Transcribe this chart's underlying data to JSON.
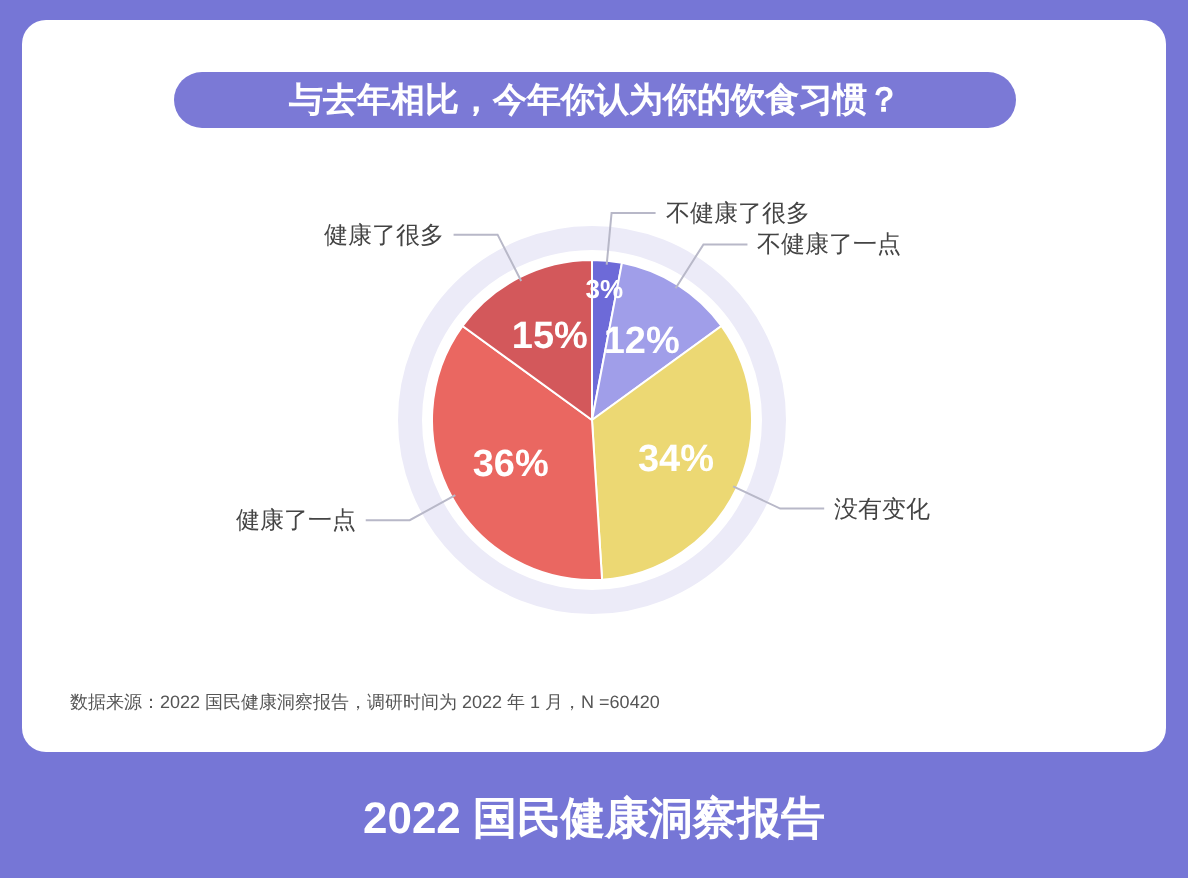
{
  "chart_data": {
    "type": "pie",
    "title": "与去年相比，今年你认为你的饮食习惯？",
    "categories": [
      "不健康了很多",
      "不健康了一点",
      "没有变化",
      "健康了一点",
      "健康了很多"
    ],
    "values": [
      3,
      12,
      34,
      36,
      15
    ],
    "value_labels": [
      "3%",
      "12%",
      "34%",
      "36%",
      "15%"
    ],
    "colors": [
      "#6d6ad8",
      "#a09ee9",
      "#ecd873",
      "#ea6761",
      "#d3585b"
    ],
    "annotations": [
      "数据来源：2022 国民健康洞察报告，调研时间为 2022 年 1 月，N =60420",
      "2022 国民健康洞察报告"
    ]
  }
}
